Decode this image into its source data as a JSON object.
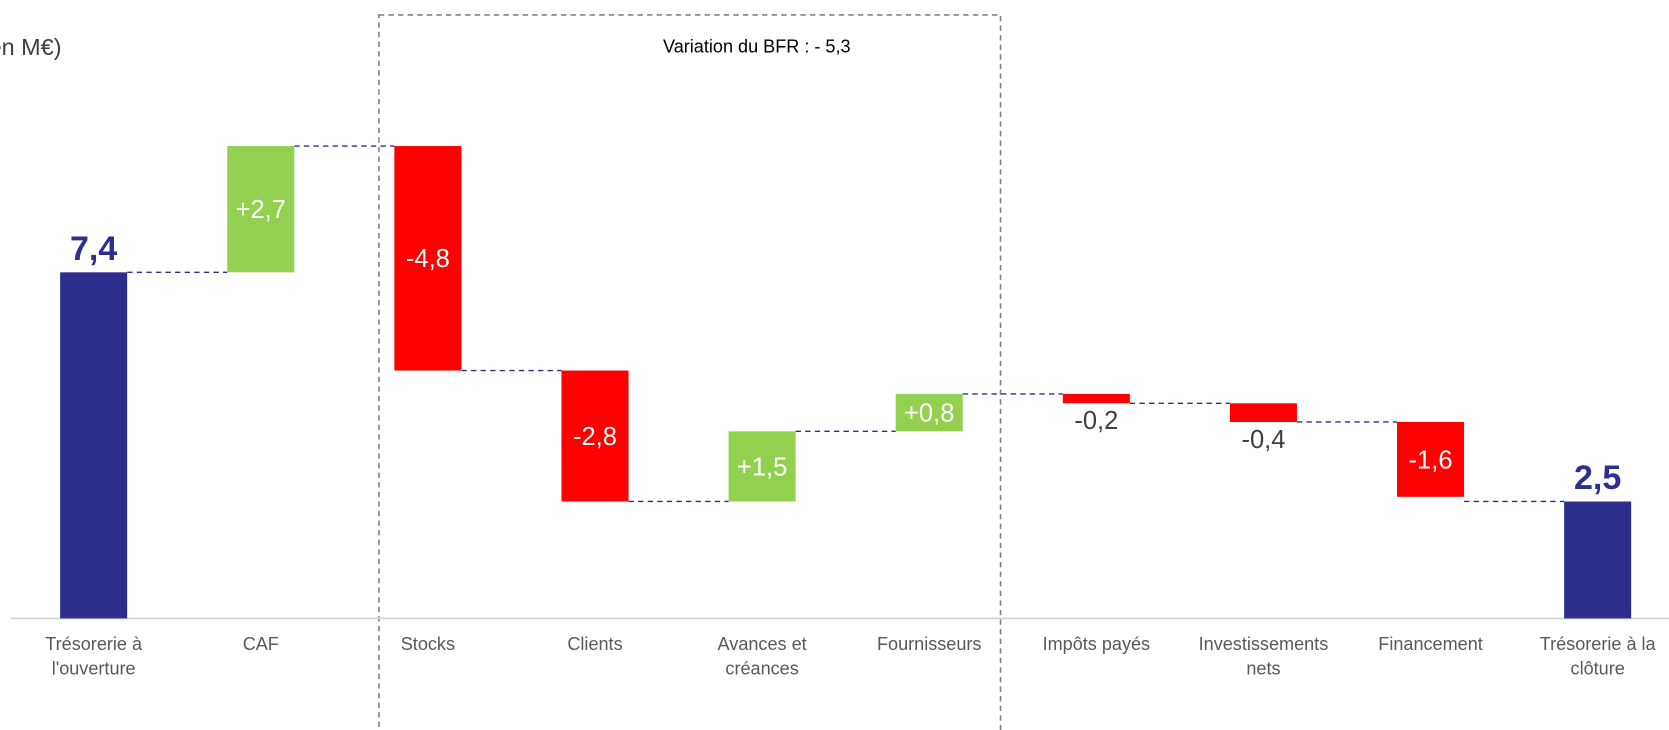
{
  "chart_data": {
    "type": "waterfall",
    "title": "(en M€)",
    "annotation": "Variation du BFR : - 5,3",
    "categories": [
      "Trésorerie à\nl'ouverture",
      "CAF",
      "Stocks",
      "Clients",
      "Avances  et\ncréances",
      "Fournisseurs",
      "Impôts payés",
      "Investissements\nnets",
      "Financement",
      "Trésorerie à la\nclôture"
    ],
    "measure": [
      "absolute",
      "relative",
      "relative",
      "relative",
      "relative",
      "relative",
      "relative",
      "relative",
      "relative",
      "total"
    ],
    "values": [
      7.4,
      2.7,
      -4.8,
      -2.8,
      1.5,
      0.8,
      -0.2,
      -0.4,
      -1.6,
      2.5
    ],
    "value_labels": [
      "7,4",
      "+2,7",
      "-4,8",
      "-2,8",
      "+1,5",
      "+0,8",
      "-0,2",
      "-0,4",
      "-1,6",
      "2,5"
    ],
    "colors": {
      "total": "#2e2e8c",
      "increase": "#92d050",
      "decrease": "#ff0000"
    },
    "ylim": [
      0,
      13.2
    ]
  }
}
